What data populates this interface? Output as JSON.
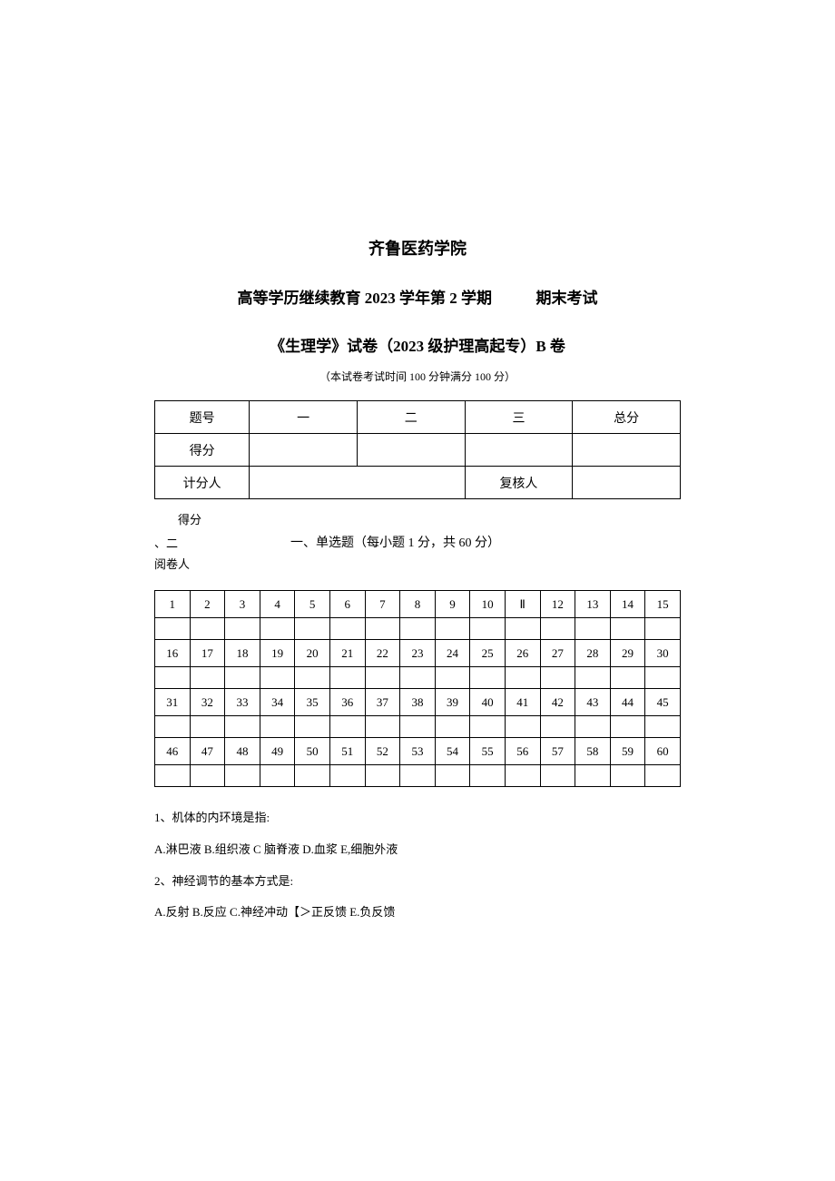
{
  "header": {
    "school": "齐鲁医药学院",
    "subtitle_left": "高等学历继续教育 2023 学年第 2 学期",
    "subtitle_right": "期末考试",
    "exam_title": "《生理学》试卷（2023 级护理高起专）B 卷",
    "exam_info": "（本试卷考试时间 100 分钟满分 100 分）"
  },
  "score_table": {
    "row1": {
      "label": "题号",
      "c1": "一",
      "c2": "二",
      "c3": "三",
      "c4": "总分"
    },
    "row2": {
      "label": "得分"
    },
    "row3": {
      "label": "计分人",
      "reviewer": "复核人"
    }
  },
  "mini": {
    "score": "得分",
    "left_marker": "、二",
    "section": "一、单选题（每小题 1 分，共 60 分）",
    "reviewer": "阅卷人"
  },
  "grid": {
    "r1": [
      "1",
      "2",
      "3",
      "4",
      "5",
      "6",
      "7",
      "8",
      "9",
      "10",
      "Ⅱ",
      "12",
      "13",
      "14",
      "15"
    ],
    "r2": [
      "16",
      "17",
      "18",
      "19",
      "20",
      "21",
      "22",
      "23",
      "24",
      "25",
      "26",
      "27",
      "28",
      "29",
      "30"
    ],
    "r3": [
      "31",
      "32",
      "33",
      "34",
      "35",
      "36",
      "37",
      "38",
      "39",
      "40",
      "41",
      "42",
      "43",
      "44",
      "45"
    ],
    "r4": [
      "46",
      "47",
      "48",
      "49",
      "50",
      "51",
      "52",
      "53",
      "54",
      "55",
      "56",
      "57",
      "58",
      "59",
      "60"
    ]
  },
  "questions": {
    "q1": {
      "text": "1、机体的内环境是指:",
      "opts": "A.淋巴液 B.组织液 C 脑脊液 D.血浆 E,细胞外液"
    },
    "q2": {
      "text": "2、神经调节的基本方式是:",
      "opts": "A.反射 B.反应 C.神经冲动【＞正反馈 E.负反馈"
    }
  }
}
